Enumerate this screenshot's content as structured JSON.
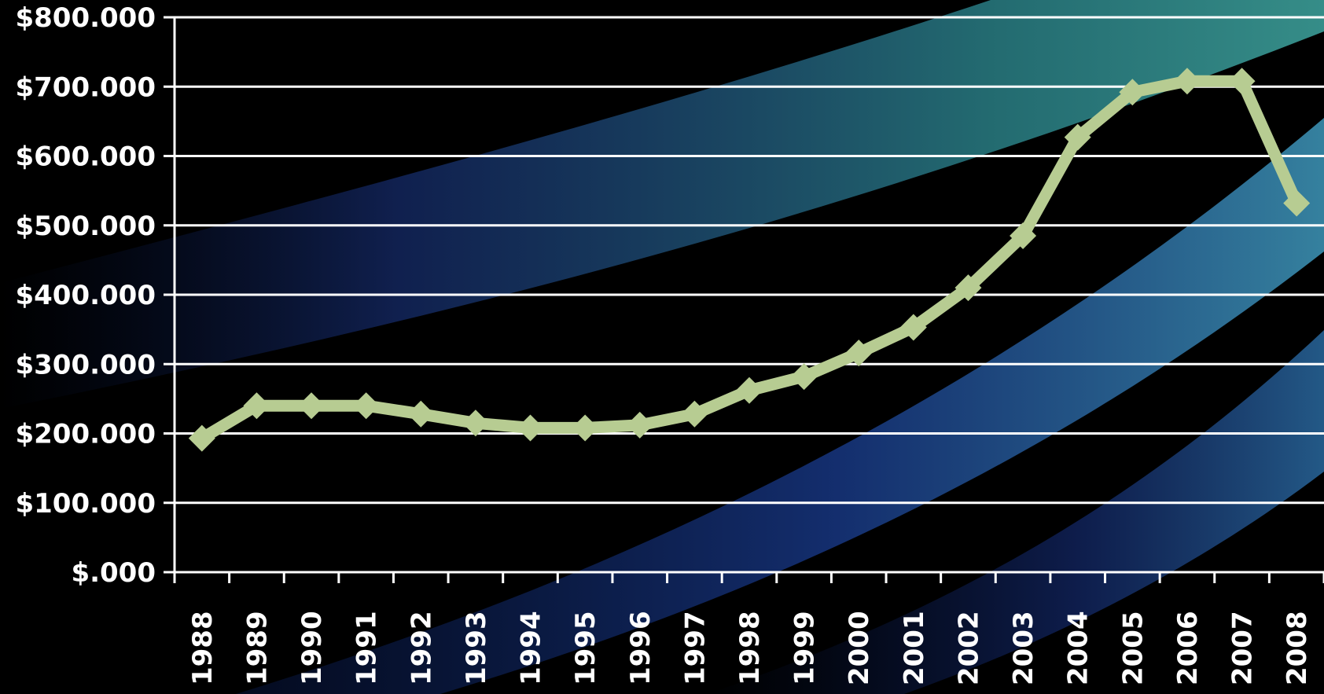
{
  "chart_data": {
    "type": "line",
    "title": "",
    "xlabel": "",
    "ylabel": "",
    "x": [
      "1988",
      "1989",
      "1990",
      "1991",
      "1992",
      "1993",
      "1994",
      "1995",
      "1996",
      "1997",
      "1998",
      "1999",
      "2000",
      "2001",
      "2002",
      "2003",
      "2004",
      "2005",
      "2006",
      "2007",
      "2008"
    ],
    "series": [
      {
        "values": [
          193000,
          240000,
          240000,
          240000,
          228000,
          215000,
          208000,
          208000,
          212000,
          228000,
          262000,
          282000,
          316000,
          353000,
          410000,
          485000,
          627000,
          692000,
          708000,
          708000,
          532000
        ]
      }
    ],
    "ylim": [
      0,
      800000
    ],
    "y_ticks": [
      "$.000",
      "$100.000",
      "$200.000",
      "$300.000",
      "$400.000",
      "$500.000",
      "$600.000",
      "$700.000",
      "$800.000"
    ],
    "grid": true,
    "legend": "none",
    "colors": {
      "line": "#b7cc92",
      "grid": "#ffffff",
      "text": "#ffffff",
      "background": "#000000",
      "band_blue": "#1d3a8f",
      "band_teal": "#3fa6a0"
    },
    "marker": "diamond"
  }
}
